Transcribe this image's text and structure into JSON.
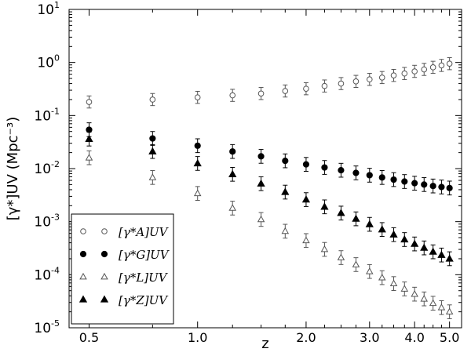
{
  "chart_data": {
    "type": "scatter",
    "x_scale": "log",
    "y_scale": "log",
    "xlabel": "z",
    "ylabel": "[γ*]UV (Mpc⁻³)",
    "xlim": [
      0.44,
      5.4
    ],
    "ylim": [
      1e-05,
      10
    ],
    "grid": false,
    "legend_position": "lower-left",
    "x_ticks": [
      {
        "value": 0.5,
        "label": "0.5"
      },
      {
        "value": 1.0,
        "label": "1.0"
      },
      {
        "value": 2.0,
        "label": "2.0"
      },
      {
        "value": 3.0,
        "label": "3.0"
      },
      {
        "value": 4.0,
        "label": "4.0"
      },
      {
        "value": 5.0,
        "label": "5.0"
      }
    ],
    "y_ticks": [
      {
        "value": 1e-05,
        "base": "10",
        "exp": "-5"
      },
      {
        "value": 0.0001,
        "base": "10",
        "exp": "-4"
      },
      {
        "value": 0.001,
        "base": "10",
        "exp": "-3"
      },
      {
        "value": 0.01,
        "base": "10",
        "exp": "-2"
      },
      {
        "value": 0.1,
        "base": "10",
        "exp": "-1"
      },
      {
        "value": 1,
        "base": "10",
        "exp": "0"
      },
      {
        "value": 10,
        "base": "10",
        "exp": "1"
      }
    ],
    "x": [
      0.5,
      0.75,
      1.0,
      1.25,
      1.5,
      1.75,
      2.0,
      2.25,
      2.5,
      2.75,
      3.0,
      3.25,
      3.5,
      3.75,
      4.0,
      4.25,
      4.5,
      4.75,
      5.0
    ],
    "series": [
      {
        "key": "A",
        "label": "[γ*A]UV",
        "marker": "circle-open",
        "color": "#555555",
        "x": [
          0.5,
          0.75,
          1.0,
          1.25,
          1.5,
          1.75,
          2.0,
          2.25,
          2.5,
          2.75,
          3.0,
          3.25,
          3.5,
          3.75,
          4.0,
          4.25,
          4.5,
          4.75,
          5.0
        ],
        "values": [
          0.18,
          0.2,
          0.22,
          0.24,
          0.26,
          0.29,
          0.32,
          0.36,
          0.4,
          0.44,
          0.48,
          0.52,
          0.57,
          0.62,
          0.68,
          0.74,
          0.81,
          0.88,
          0.95
        ],
        "err_factor": 1.3
      },
      {
        "key": "G",
        "label": "[γ*G]UV",
        "marker": "circle-filled",
        "color": "#000000",
        "x": [
          0.5,
          0.75,
          1.0,
          1.25,
          1.5,
          1.75,
          2.0,
          2.25,
          2.5,
          2.75,
          3.0,
          3.25,
          3.5,
          3.75,
          4.0,
          4.25,
          4.5,
          4.75,
          5.0
        ],
        "values": [
          0.054,
          0.037,
          0.027,
          0.021,
          0.017,
          0.014,
          0.012,
          0.0105,
          0.0093,
          0.0083,
          0.0075,
          0.0068,
          0.0062,
          0.0057,
          0.0053,
          0.005,
          0.0047,
          0.0045,
          0.0043
        ],
        "err_factor": 1.35
      },
      {
        "key": "L",
        "label": "[γ*L]UV",
        "marker": "triangle-open",
        "color": "#555555",
        "x": [
          0.5,
          0.75,
          1.0,
          1.25,
          1.5,
          1.75,
          2.0,
          2.25,
          2.5,
          2.75,
          3.0,
          3.25,
          3.5,
          3.75,
          4.0,
          4.25,
          4.5,
          4.75,
          5.0
        ],
        "values": [
          0.016,
          0.0068,
          0.0034,
          0.0018,
          0.0011,
          0.00066,
          0.00044,
          0.0003,
          0.00021,
          0.000155,
          0.000115,
          8.8e-05,
          6.8e-05,
          5.4e-05,
          4.3e-05,
          3.5e-05,
          2.9e-05,
          2.4e-05,
          2e-05
        ],
        "err_factor": 1.35
      },
      {
        "key": "Z",
        "label": "[γ*Z]UV",
        "marker": "triangle-filled",
        "color": "#000000",
        "x": [
          0.5,
          0.75,
          1.0,
          1.25,
          1.5,
          1.75,
          2.0,
          2.25,
          2.5,
          2.75,
          3.0,
          3.25,
          3.5,
          3.75,
          4.0,
          4.25,
          4.5,
          4.75,
          5.0
        ],
        "values": [
          0.036,
          0.021,
          0.0125,
          0.0078,
          0.0052,
          0.0036,
          0.0026,
          0.0019,
          0.00145,
          0.00113,
          0.00089,
          0.00071,
          0.00057,
          0.00046,
          0.00038,
          0.00032,
          0.00027,
          0.000235,
          0.0002
        ],
        "err_factor": 1.35
      }
    ]
  }
}
